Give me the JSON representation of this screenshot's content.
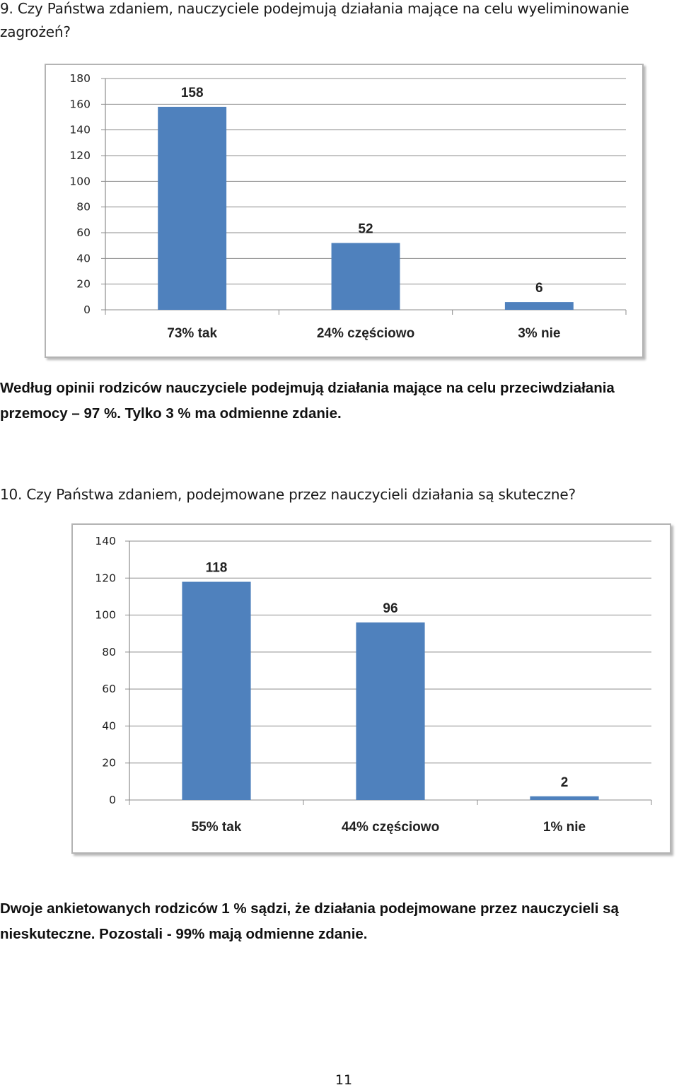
{
  "question1": {
    "text": "9. Czy Państwa zdaniem, nauczyciele podejmują działania mające na celu wyeliminowanie zagrożeń?"
  },
  "summary1": {
    "text": "Według opinii rodziców nauczyciele podejmują działania mające na celu przeciwdziałania przemocy – 97 %. Tylko 3 %  ma odmienne zdanie."
  },
  "question2": {
    "text": "10. Czy Państwa zdaniem, podejmowane przez nauczycieli działania są skuteczne?"
  },
  "summary2": {
    "text": "Dwoje ankietowanych rodziców  1 % sądzi, że działania podejmowane przez nauczycieli są nieskuteczne. Pozostali  - 99%  mają odmienne zdanie."
  },
  "page_number": "11",
  "colors": {
    "bar": "#4f81bd",
    "grid": "#8c8c8c"
  },
  "chart_data": [
    {
      "type": "bar",
      "categories": [
        "73% tak",
        "24% częściowo",
        "3% nie"
      ],
      "values": [
        158,
        52,
        6
      ],
      "ylim": [
        0,
        180
      ],
      "yticks": [
        0,
        20,
        40,
        60,
        80,
        100,
        120,
        140,
        160,
        180
      ],
      "grid": true,
      "legend": "none"
    },
    {
      "type": "bar",
      "categories": [
        "55% tak",
        "44% częściowo",
        "1% nie"
      ],
      "values": [
        118,
        96,
        2
      ],
      "ylim": [
        0,
        140
      ],
      "yticks": [
        0,
        20,
        40,
        60,
        80,
        100,
        120,
        140
      ],
      "grid": true,
      "legend": "none"
    }
  ]
}
